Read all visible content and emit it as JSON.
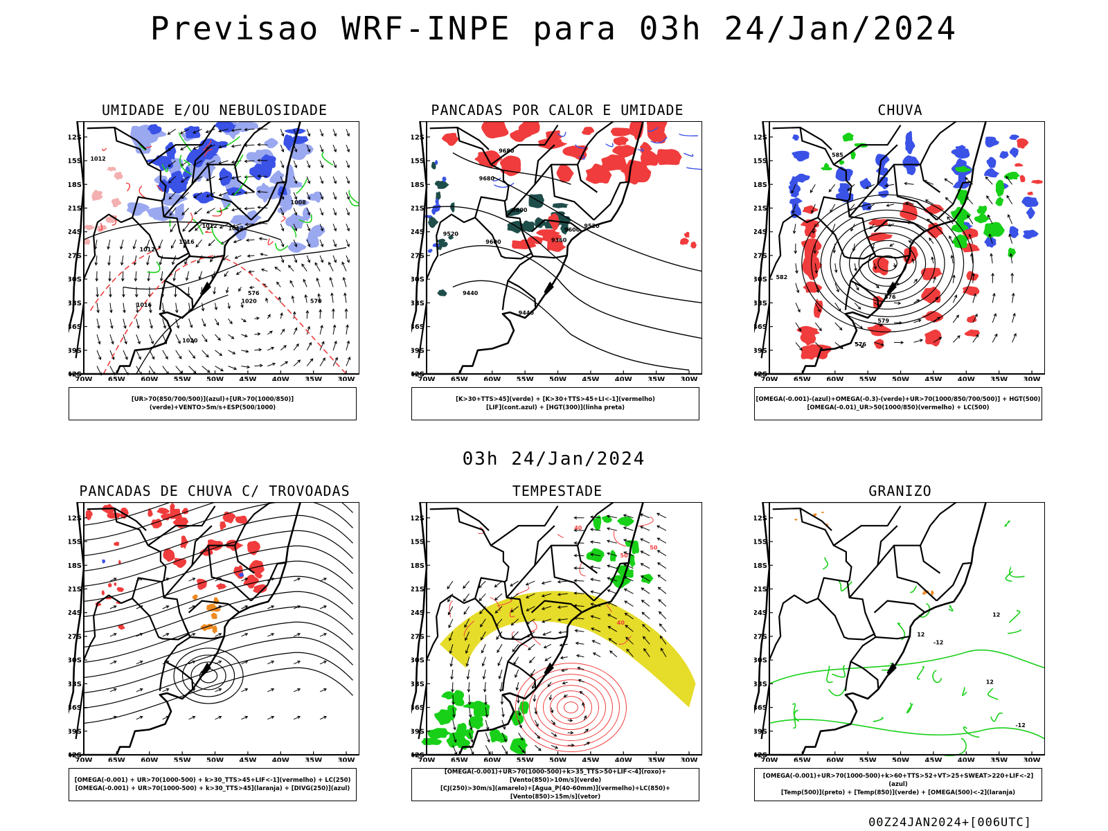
{
  "header": {
    "title": "Previsao WRF-INPE  para 03h 24/Jan/2024"
  },
  "mid_time": "03h 24/Jan/2024",
  "footer": "00Z24JAN2024+[006UTC]",
  "axes": {
    "lat_labels": [
      "12S",
      "15S",
      "18S",
      "21S",
      "24S",
      "27S",
      "30S",
      "33S",
      "36S",
      "39S",
      "42S"
    ],
    "lon_labels": [
      "70W",
      "65W",
      "60W",
      "55W",
      "50W",
      "45W",
      "40W",
      "35W",
      "30W"
    ]
  },
  "colors": {
    "blue": "#3a52e6",
    "light_blue": "#9aa8f0",
    "green": "#18d018",
    "red": "#f03c3c",
    "dark_teal": "#1e4d4a",
    "yellow": "#e6dc2a",
    "orange": "#ee8a22"
  },
  "panels": [
    {
      "id": "umidade",
      "title": "UMIDADE E/OU NEBULOSIDADE",
      "legend": [
        "[UR>70(850/700/500)](azul)+[UR>70(1000/850)](verde)+VENTO>5m/s+ESP(500/1000)"
      ],
      "contour_labels": [
        "1012",
        "1012",
        "1012",
        "1012",
        "1016",
        "1016",
        "1020",
        "1020",
        "1008",
        "576",
        "570"
      ]
    },
    {
      "id": "pancadas_calor",
      "title": "PANCADAS POR CALOR E UMIDADE",
      "legend": [
        "[K>30+TTS>45](verde) + [K>30+TTS>45+LI<-1](vermelho)",
        "[LIF](cont.azul) + [HGT(300)](linha preta)"
      ],
      "contour_labels": [
        "9680",
        "9680",
        "9600",
        "9600",
        "9520",
        "9520",
        "9440",
        "9360",
        "9440",
        "9600"
      ]
    },
    {
      "id": "chuva",
      "title": "CHUVA",
      "legend": [
        "[OMEGA(-0.001)-(azul)+OMEGA(-0.3)-(verde)+UR>70(1000/850/700/500)] + HGT(500)",
        "[OMEGA(-0.01)_UR>50(1000/850)(vermelho) + LC(500)"
      ],
      "contour_labels": [
        "582",
        "576",
        "576",
        "579",
        "585"
      ]
    },
    {
      "id": "trovoadas",
      "title": "PANCADAS DE CHUVA C/ TROVOADAS",
      "legend": [
        "[OMEGA(-0.001) + UR>70(1000-500) + k>30_TTS>45+LIF<-1](vermelho) + LC(250)",
        "[OMEGA(-0.001) + UR>70(1000-500) + k>30_TTS>45](laranja) + [DIVG(250)](azul)"
      ],
      "contour_labels": []
    },
    {
      "id": "tempestade",
      "title": "TEMPESTADE",
      "legend": [
        "[OMEGA(-0.001)+UR>70(1000-500)+k>35_TTS>50+LIF<-4](roxo)+[Vento(850)>10m/s](verde)",
        "[CJ(250)>30m/s](amarelo)+[Agua_P(40-60mm)](vermelho)+LC(850)+[Vento(850)>15m/s](vetor)"
      ],
      "contour_labels": [
        "40",
        "50",
        "50",
        "40"
      ]
    },
    {
      "id": "granizo",
      "title": "GRANIZO",
      "legend": [
        "[OMEGA(-0.001)+UR>70(1000-500)+k>60+TTS>52+VT>25+SWEAT>220+LIF<-2](azul)",
        "[Temp(500)](preto) + [Temp(850)](verde) + [OMEGA(500)<-2](laranja)"
      ],
      "contour_labels": [
        "12",
        "-12",
        "12",
        "12",
        "-12"
      ]
    }
  ]
}
